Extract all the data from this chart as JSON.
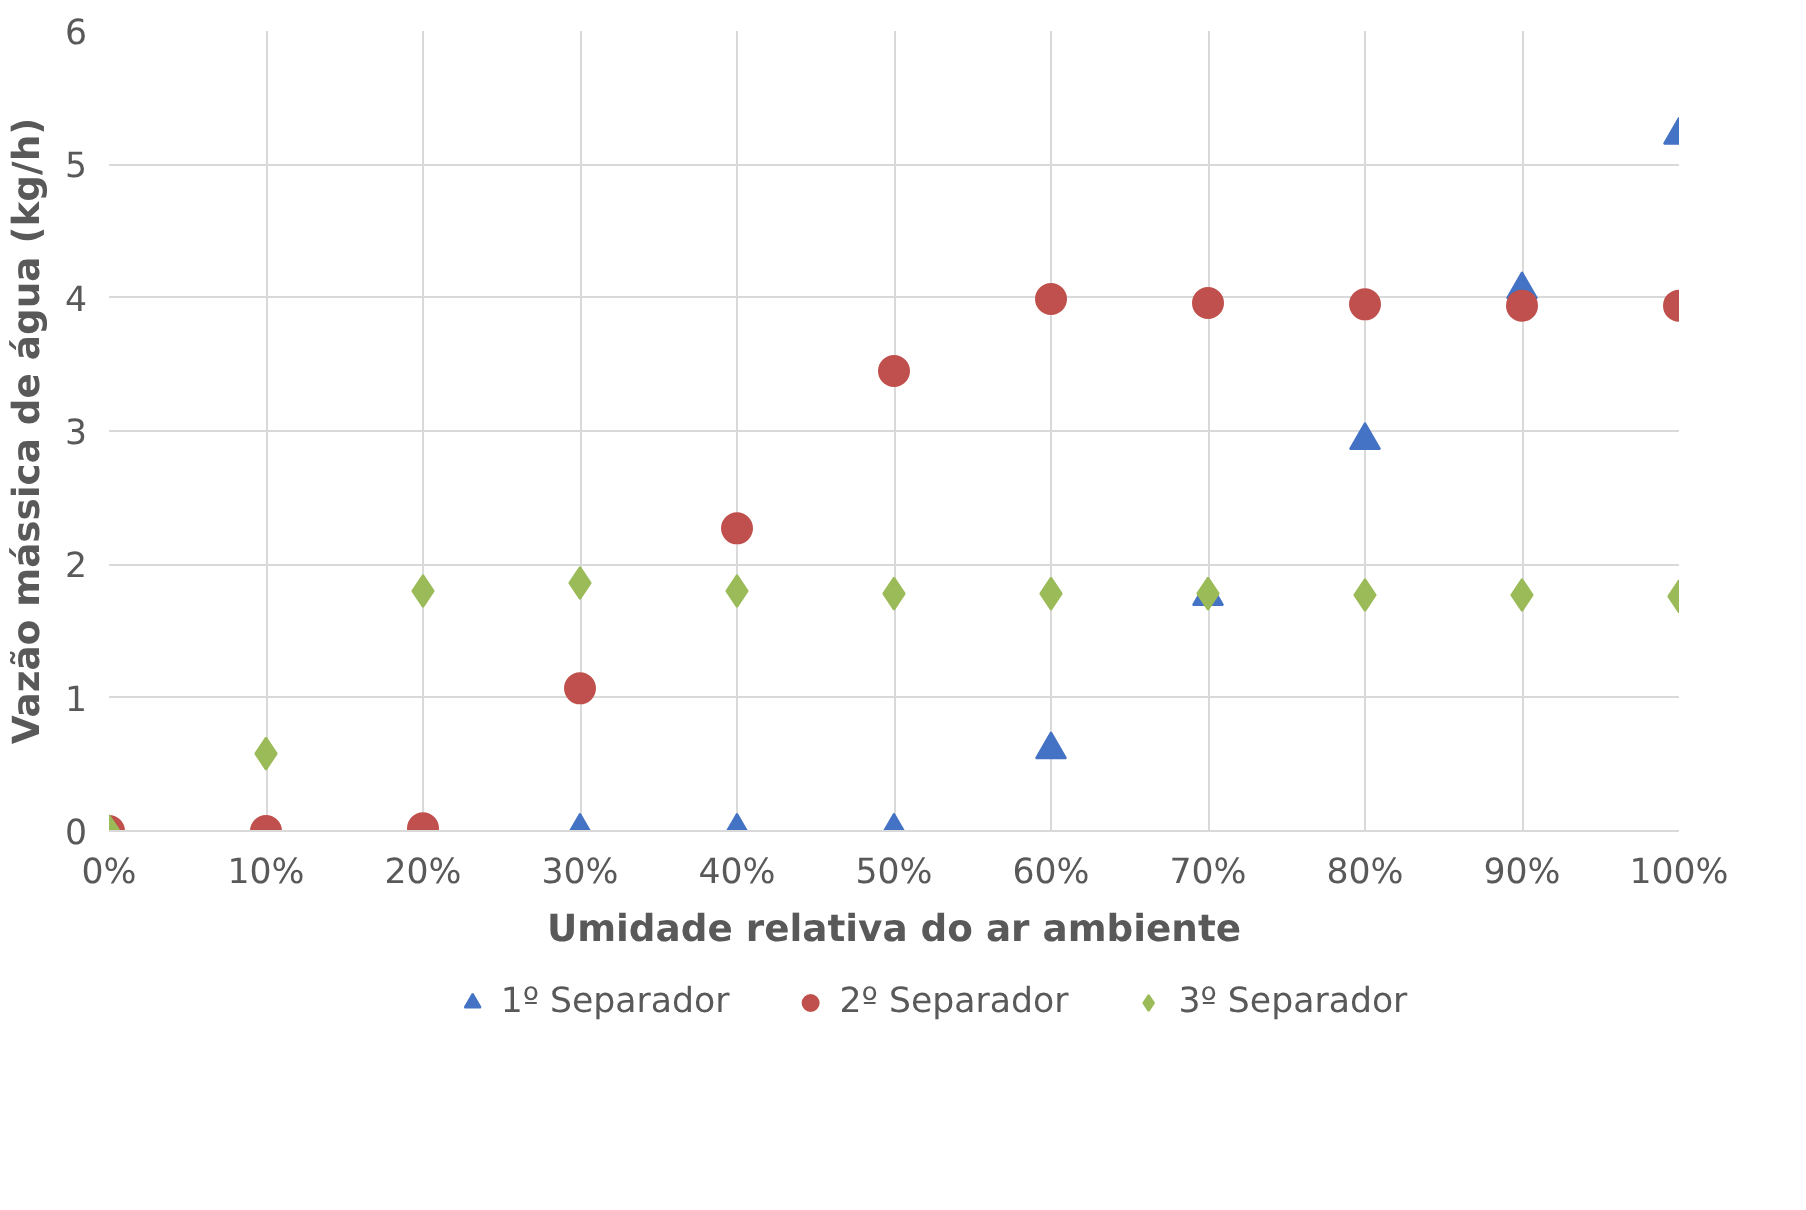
{
  "chart_data": {
    "type": "scatter",
    "xlabel": "Umidade relativa do ar ambiente",
    "ylabel": "Vazão mássica de água (kg/h)",
    "x": [
      0,
      0.1,
      0.2,
      0.3,
      0.4,
      0.5,
      0.6,
      0.7,
      0.8,
      0.9,
      1.0
    ],
    "series": [
      {
        "name": "1º Separador",
        "color": "#4472c4",
        "marker": "triangle",
        "values": [
          null,
          null,
          null,
          0,
          0,
          0,
          0.61,
          1.76,
          2.93,
          4.06,
          5.22
        ]
      },
      {
        "name": "2º Separador",
        "color": "#c0504d",
        "marker": "circle",
        "values": [
          0,
          0,
          0.02,
          1.07,
          2.27,
          3.45,
          3.99,
          3.96,
          3.95,
          3.94,
          3.94
        ]
      },
      {
        "name": "3º Separador",
        "color": "#9bbb59",
        "marker": "diamond",
        "values": [
          0,
          0.58,
          1.8,
          1.86,
          1.8,
          1.78,
          1.78,
          1.78,
          1.77,
          1.77,
          1.76
        ]
      }
    ],
    "xlim": [
      0,
      1.0
    ],
    "ylim": [
      0,
      6
    ],
    "xticks": [
      {
        "value": 0,
        "label": "0%"
      },
      {
        "value": 0.1,
        "label": "10%"
      },
      {
        "value": 0.2,
        "label": "20%"
      },
      {
        "value": 0.3,
        "label": "30%"
      },
      {
        "value": 0.4,
        "label": "40%"
      },
      {
        "value": 0.5,
        "label": "50%"
      },
      {
        "value": 0.6,
        "label": "60%"
      },
      {
        "value": 0.7,
        "label": "70%"
      },
      {
        "value": 0.8,
        "label": "80%"
      },
      {
        "value": 0.9,
        "label": "90%"
      },
      {
        "value": 1.0,
        "label": "100%"
      }
    ],
    "yticks": [
      0,
      1,
      2,
      3,
      4,
      5,
      6
    ],
    "grid": true,
    "legend": "bottom"
  }
}
